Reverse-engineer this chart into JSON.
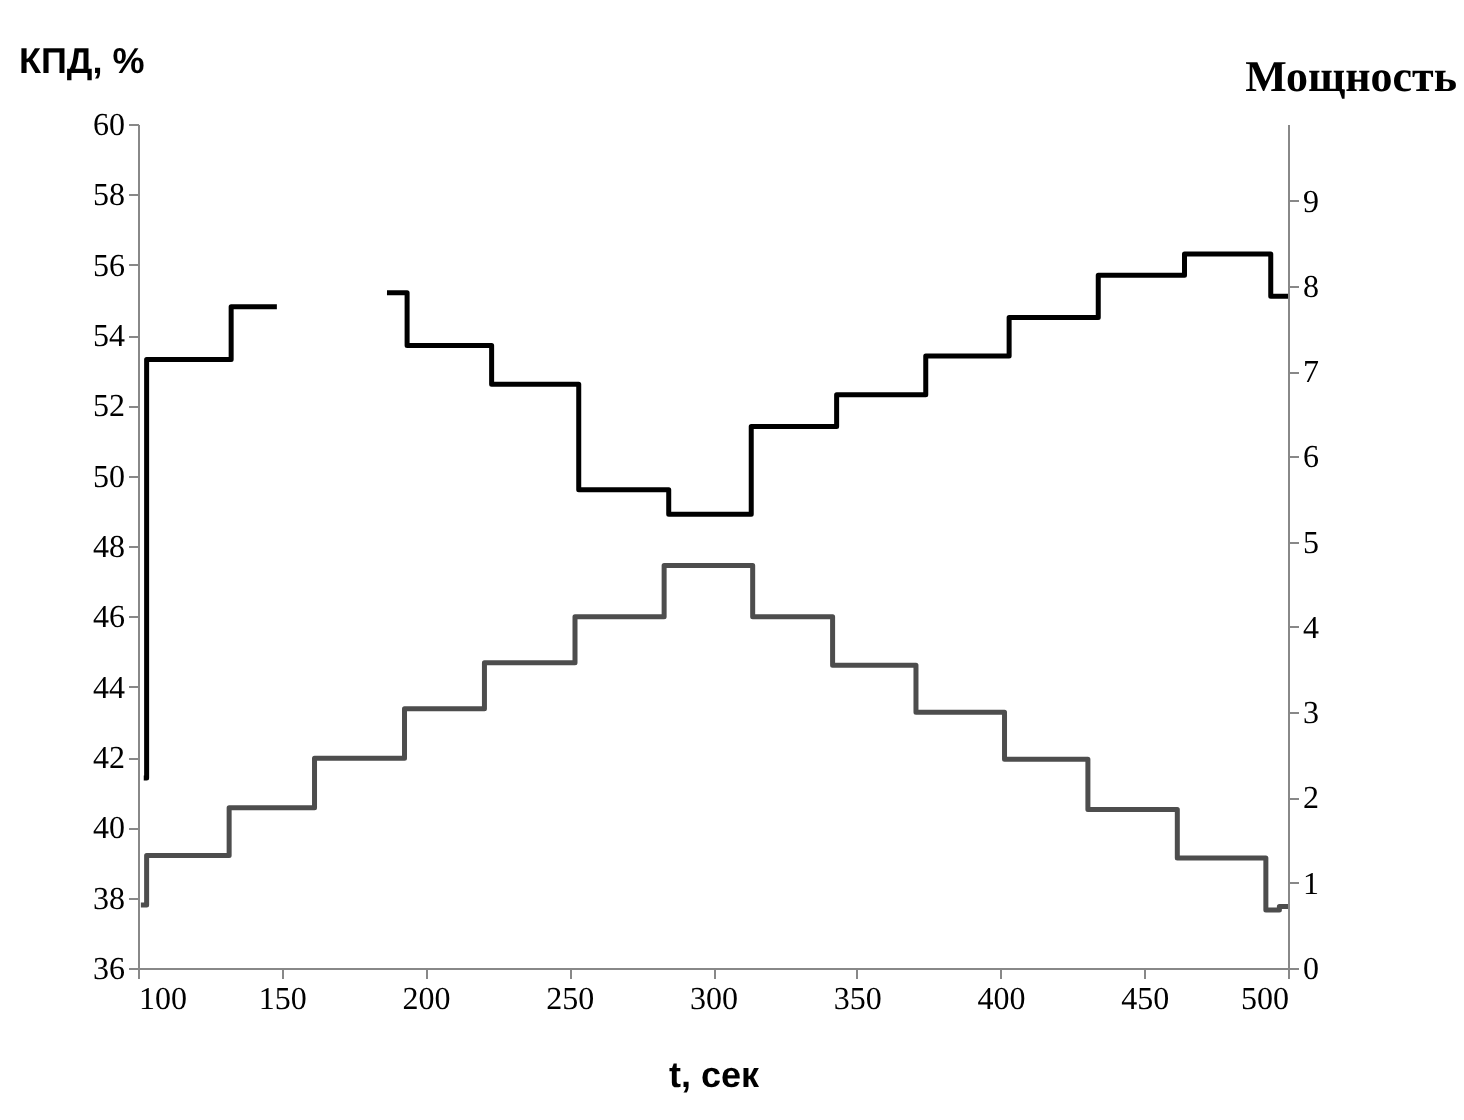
{
  "chart_data": {
    "type": "step",
    "xlabel": "t, сек",
    "ylabel": "КПД, %",
    "y2label": "Мощность",
    "xlim": [
      100,
      500
    ],
    "xticks": [
      100,
      150,
      200,
      250,
      300,
      350,
      400,
      450,
      500
    ],
    "ylim": [
      36,
      60
    ],
    "yticks": [
      36,
      38,
      40,
      42,
      44,
      46,
      48,
      50,
      52,
      54,
      56,
      58,
      60
    ],
    "y2lim": [
      0,
      9.9
    ],
    "y2ticks": [
      0,
      1,
      2,
      3,
      4,
      5,
      6,
      7,
      8,
      9
    ],
    "series": [
      {
        "color": "#000000",
        "x": [
          102,
          103,
          132.4,
          148.3,
          160,
          186.6,
          193.6,
          223,
          253.3,
          284.6,
          313.3,
          343,
          374,
          403,
          434,
          464,
          494,
          500
        ],
        "values": [
          41.4,
          53.3,
          54.8,
          54.8,
          null,
          55.2,
          53.7,
          52.6,
          49.6,
          48.9,
          51.4,
          52.3,
          53.4,
          54.5,
          55.7,
          56.3,
          55.1,
          55.1
        ]
      },
      {
        "color": "#4d4d4d",
        "axis": "y2",
        "x": [
          101,
          103,
          131.7,
          161.4,
          192.7,
          220.5,
          252,
          283,
          313.8,
          341.6,
          370.6,
          401.4,
          430.4,
          461.5,
          492.3,
          497,
          500
        ],
        "values": [
          0.74,
          1.32,
          1.88,
          2.46,
          3.04,
          3.58,
          4.12,
          4.72,
          4.12,
          3.55,
          3.0,
          2.45,
          1.86,
          1.29,
          0.68,
          0.72,
          0.72
        ]
      }
    ]
  }
}
